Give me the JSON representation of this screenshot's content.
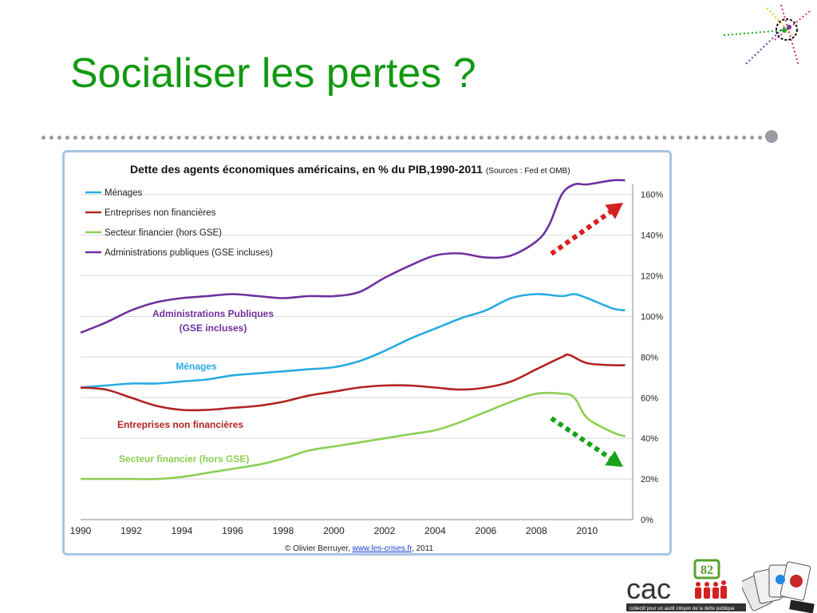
{
  "slide": {
    "title": "Socialiser les pertes ?"
  },
  "colors": {
    "title": "#119911",
    "divider": "#9a9aa2",
    "arrow_up": "#d42020",
    "arrow_down": "#1aa01a"
  },
  "logo": {
    "text": "cac",
    "badge": "82",
    "tagline": "collectif pour un audit citoyen de la dette publique"
  },
  "chart_data": {
    "type": "line",
    "title": "Dette des agents économiques américains, en % du PIB,1990-2011",
    "title_note": "(Sources : Fed et OMB)",
    "x_ticks": [
      "1990",
      "1992",
      "1994",
      "1996",
      "1998",
      "2000",
      "2002",
      "2004",
      "2006",
      "2008",
      "2010"
    ],
    "y_ticks": [
      "0%",
      "20%",
      "40%",
      "60%",
      "80%",
      "100%",
      "120%",
      "140%",
      "160%"
    ],
    "xlim": [
      1990,
      2011.8
    ],
    "ylim": [
      0,
      165
    ],
    "y_axis_side": "right",
    "grid": "horizontal",
    "legend_position": "top-left",
    "series": [
      {
        "name": "Ménages",
        "inline_label": "Ménages",
        "color": "#29abe2",
        "x": [
          1990,
          1991,
          1992,
          1993,
          1994,
          1995,
          1996,
          1997,
          1998,
          1999,
          2000,
          2001,
          2002,
          2003,
          2004,
          2005,
          2006,
          2007,
          2008,
          2009,
          2009.5,
          2010,
          2011,
          2011.5
        ],
        "y": [
          65,
          66,
          67,
          67,
          68,
          69,
          71,
          72,
          73,
          74,
          75,
          78,
          83,
          89,
          94,
          99,
          103,
          109,
          111,
          110,
          111,
          109,
          104,
          103
        ]
      },
      {
        "name": "Entreprises non financières",
        "inline_label": "Entreprises non financières",
        "color": "#b22222",
        "x": [
          1990,
          1991,
          1992,
          1993,
          1994,
          1995,
          1996,
          1997,
          1998,
          1999,
          2000,
          2001,
          2002,
          2003,
          2004,
          2005,
          2006,
          2007,
          2008,
          2009,
          2009.3,
          2010,
          2011,
          2011.5
        ],
        "y": [
          65,
          64,
          60,
          56,
          54,
          54,
          55,
          56,
          58,
          61,
          63,
          65,
          66,
          66,
          65,
          64,
          65,
          68,
          74,
          80,
          81,
          77,
          76,
          76
        ]
      },
      {
        "name": "Secteur financier (hors GSE)",
        "inline_label": "Secteur financier (hors GSE)",
        "color": "#8ccf52",
        "x": [
          1990,
          1991,
          1992,
          1993,
          1994,
          1995,
          1996,
          1997,
          1998,
          1999,
          2000,
          2001,
          2002,
          2003,
          2004,
          2005,
          2006,
          2007,
          2008,
          2009,
          2009.5,
          2010,
          2011,
          2011.5
        ],
        "y": [
          20,
          20,
          20,
          20,
          21,
          23,
          25,
          27,
          30,
          34,
          36,
          38,
          40,
          42,
          44,
          48,
          53,
          58,
          62,
          62,
          60,
          50,
          43,
          41
        ]
      },
      {
        "name": "Administrations publiques (GSE incluses)",
        "inline_label": "Administrations Publiques (GSE incluses)",
        "color": "#7030a0",
        "x": [
          1990,
          1991,
          1992,
          1993,
          1994,
          1995,
          1996,
          1997,
          1998,
          1999,
          2000,
          2001,
          2002,
          2003,
          2004,
          2005,
          2006,
          2007,
          2008,
          2008.5,
          2009,
          2009.5,
          2010,
          2011,
          2011.5
        ],
        "y": [
          92,
          97,
          103,
          107,
          109,
          110,
          111,
          110,
          109,
          110,
          110,
          112,
          119,
          125,
          130,
          131,
          129,
          130,
          137,
          145,
          160,
          165,
          165,
          167,
          167
        ]
      }
    ],
    "inline_label_lines": {
      "admin": [
        "Administrations Publiques",
        "(GSE incluses)"
      ]
    },
    "copyright": {
      "prefix": "© Olivier Berruyer, ",
      "link": "www.les-crises.fr",
      "suffix": ",  2011"
    }
  }
}
